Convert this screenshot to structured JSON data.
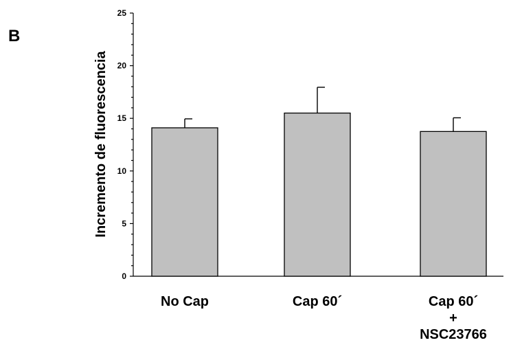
{
  "panel_label": "B",
  "chart_data": {
    "type": "bar",
    "categories": [
      [
        "No Cap"
      ],
      [
        "Cap 60´"
      ],
      [
        "Cap 60´",
        "+",
        "NSC23766"
      ]
    ],
    "series": [
      {
        "values": [
          14.1,
          15.5,
          13.75
        ],
        "errors": [
          0.85,
          2.45,
          1.3
        ]
      }
    ],
    "ylabel": "Incremento de fluorescencia",
    "xlabel": "",
    "ylim": [
      0,
      25
    ],
    "yticks": [
      0,
      5,
      10,
      15,
      20,
      25
    ],
    "minor_ticks": true,
    "grid": false,
    "colors": {
      "bar_fill": "#c0c0c0",
      "bar_stroke": "#000000"
    }
  }
}
